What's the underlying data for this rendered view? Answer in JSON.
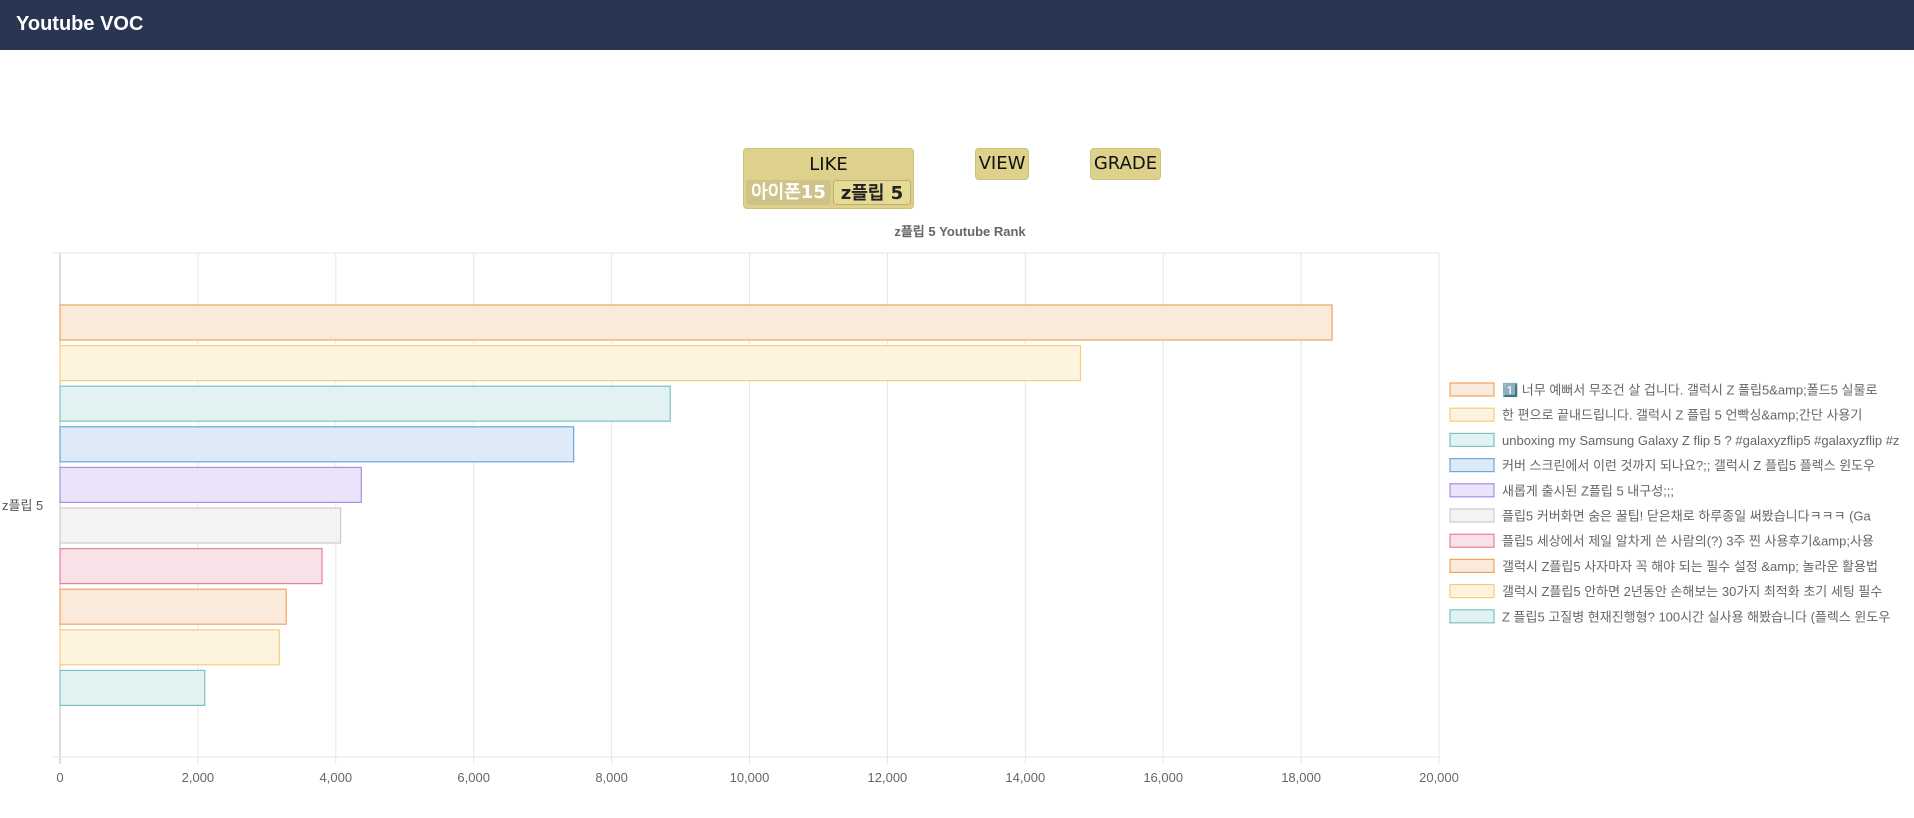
{
  "app": {
    "title": "Youtube VOC"
  },
  "controls": {
    "like": "LIKE",
    "view": "VIEW",
    "grade": "GRADE",
    "sub_buttons": {
      "iphone": "아이폰15",
      "zflip": "z플립 5"
    }
  },
  "chart_data": {
    "type": "bar",
    "orientation": "horizontal",
    "title": "z플립 5 Youtube Rank",
    "categories": [
      "z플립 5"
    ],
    "xlim": [
      0,
      20000
    ],
    "x_ticks": [
      "0",
      "2,000",
      "4,000",
      "6,000",
      "8,000",
      "10,000",
      "12,000",
      "14,000",
      "16,000",
      "18,000",
      "20,000"
    ],
    "grid": true,
    "legend_position": "right",
    "series": [
      {
        "name": "1️⃣ 너무 예뻐서 무조건 살 겁니다. 갤럭시 Z 플립5&amp;폴드5 실물로",
        "values": [
          18450
        ],
        "color": "#f0a35e",
        "fill": "#faeadc"
      },
      {
        "name": "한 편으로 끝내드립니다. 갤럭시 Z 플립 5 언빡싱&amp;간단 사용기",
        "values": [
          14800
        ],
        "color": "#f5cf78",
        "fill": "#fdf3df"
      },
      {
        "name": "unboxing my Samsung Galaxy Z flip 5 ? #galaxyzflip5 #galaxyzflip #z",
        "values": [
          8850
        ],
        "color": "#7cc4c4",
        "fill": "#e2f1f1"
      },
      {
        "name": "커버 스크린에서 이런 것까지 되나요?;; 갤럭시 Z 플립5 플렉스 윈도우",
        "values": [
          7450
        ],
        "color": "#6aa6e0",
        "fill": "#dfeaf8"
      },
      {
        "name": "새롭게 출시된 Z플립 5 내구성;;;",
        "values": [
          4370
        ],
        "color": "#a98ee6",
        "fill": "#ebe3fa"
      },
      {
        "name": "플립5 커버화면 숨은 꿀팁! 닫은채로 하루종일 써봤습니다ㅋㅋㅋ (Ga",
        "values": [
          4070
        ],
        "color": "#c9cbcf",
        "fill": "#f3f3f3"
      },
      {
        "name": "플립5 세상에서 제일 알차게 쓴 사람의(?) 3주 찐 사용후기&amp;사용",
        "values": [
          3800
        ],
        "color": "#e6829a",
        "fill": "#f9e2e7"
      },
      {
        "name": "갤럭시 Z플립5 사자마자 꼭 해야 되는 필수 설정 &amp; 놀라운 활용법",
        "values": [
          3280
        ],
        "color": "#f0a35e",
        "fill": "#faeadc"
      },
      {
        "name": "갤럭시 Z플립5 안하면 2년동안 손해보는 30가지 최적화 초기 세팅 필수",
        "values": [
          3180
        ],
        "color": "#f5cf78",
        "fill": "#fdf3df"
      },
      {
        "name": "Z 플립5 고질병 현재진행형? 100시간 실사용 해봤습니다 (플렉스 윈도우",
        "values": [
          2100
        ],
        "color": "#7cc4c4",
        "fill": "#e2f1f1"
      }
    ]
  }
}
